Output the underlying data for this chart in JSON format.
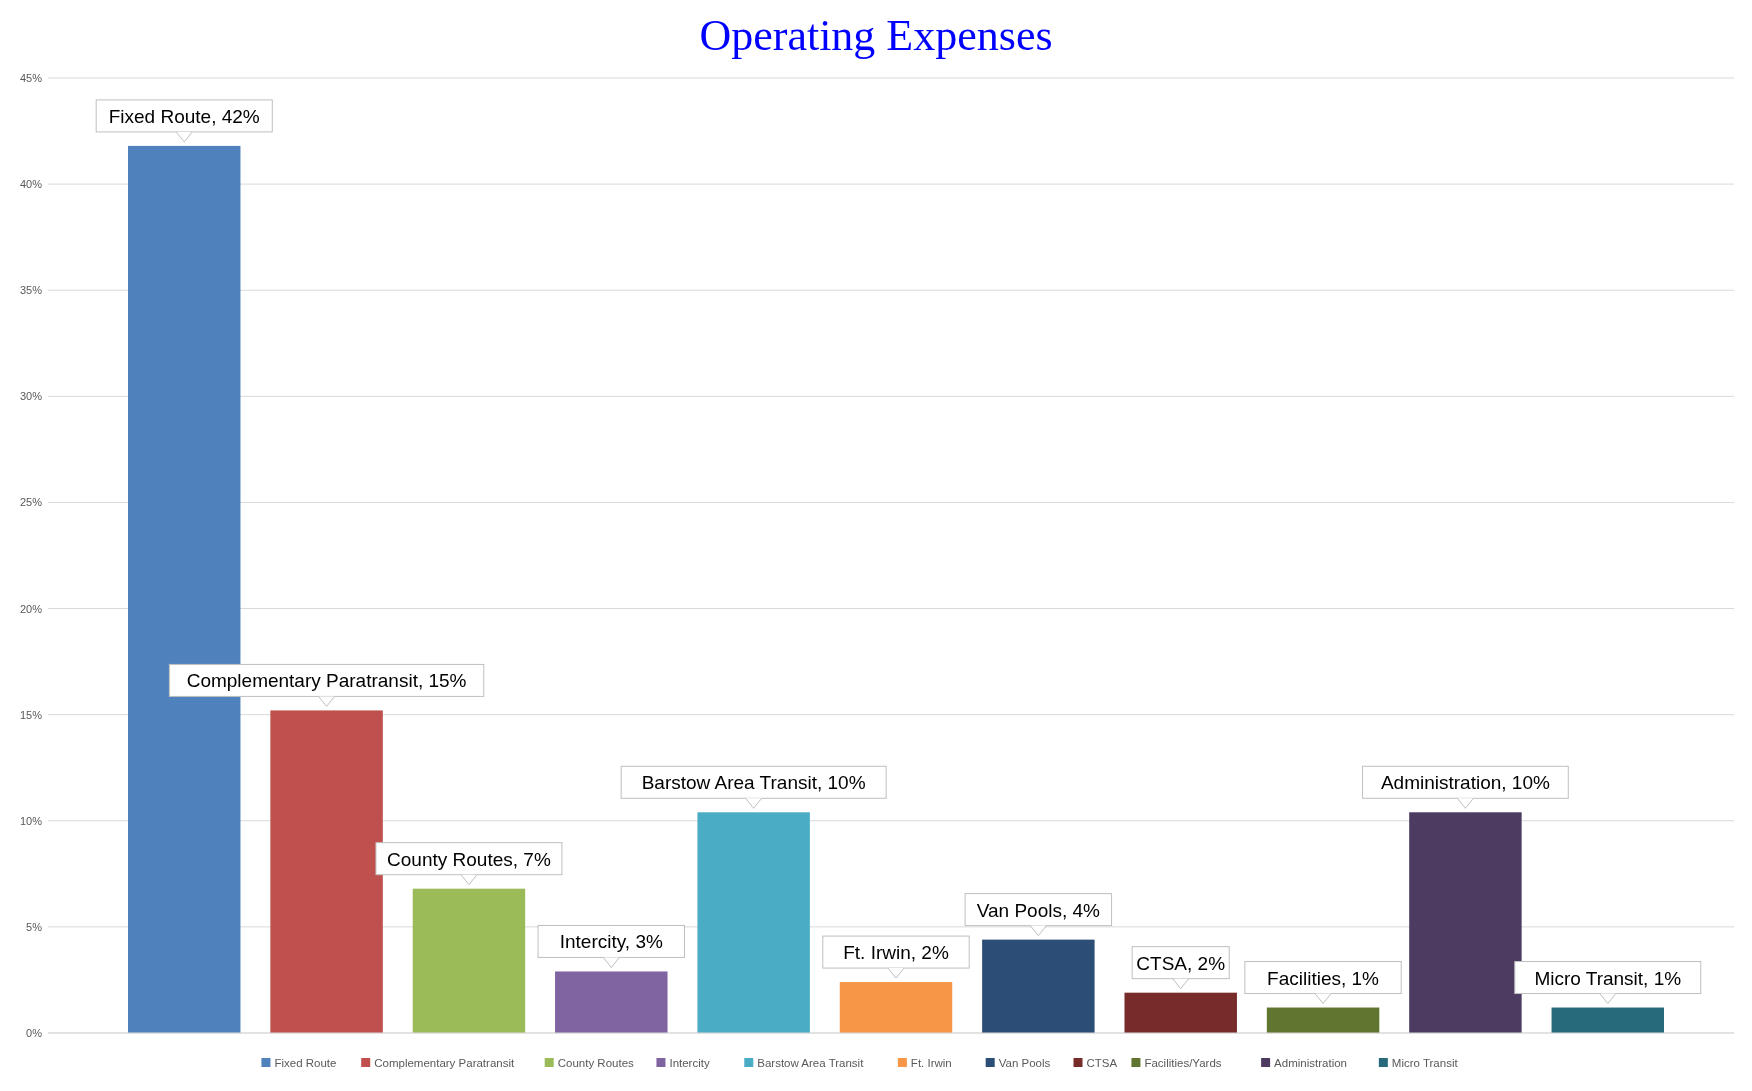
{
  "chart_data": {
    "type": "bar",
    "title": "Operating Expenses",
    "stacked": true,
    "categories": [
      null,
      null,
      null,
      null,
      null,
      null,
      null,
      null,
      null,
      null,
      null
    ],
    "series": [
      {
        "name": "Fixed Route",
        "color": "#4f81bd",
        "values": [
          41.8,
          null,
          null,
          null,
          null,
          null,
          null,
          null,
          null,
          null,
          null
        ],
        "value_labels": [
          "Fixed Route, 42%",
          null,
          null,
          null,
          null,
          null,
          null,
          null,
          null,
          null,
          null
        ]
      },
      {
        "name": "Complementary Paratransit",
        "color": "#c0504d",
        "values": [
          null,
          15.2,
          null,
          null,
          null,
          null,
          null,
          null,
          null,
          null,
          null
        ],
        "value_labels": [
          null,
          "Complementary Paratransit, 15%",
          null,
          null,
          null,
          null,
          null,
          null,
          null,
          null,
          null
        ]
      },
      {
        "name": "County Routes",
        "color": "#9bbb59",
        "values": [
          null,
          null,
          6.8,
          null,
          null,
          null,
          null,
          null,
          null,
          null,
          null
        ],
        "value_labels": [
          null,
          null,
          "County Routes, 7%",
          null,
          null,
          null,
          null,
          null,
          null,
          null,
          null
        ]
      },
      {
        "name": "Intercity",
        "color": "#8064a2",
        "values": [
          null,
          null,
          null,
          2.9,
          null,
          null,
          null,
          null,
          null,
          null,
          null
        ],
        "value_labels": [
          null,
          null,
          null,
          "Intercity, 3%",
          null,
          null,
          null,
          null,
          null,
          null,
          null
        ]
      },
      {
        "name": "Barstow Area Transit",
        "color": "#4bacc6",
        "values": [
          null,
          null,
          null,
          null,
          10.4,
          null,
          null,
          null,
          null,
          null,
          null
        ],
        "value_labels": [
          null,
          null,
          null,
          null,
          "Barstow Area Transit, 10%",
          null,
          null,
          null,
          null,
          null,
          null
        ]
      },
      {
        "name": "Ft. Irwin",
        "color": "#f79646",
        "values": [
          null,
          null,
          null,
          null,
          null,
          2.4,
          null,
          null,
          null,
          null,
          null
        ],
        "value_labels": [
          null,
          null,
          null,
          null,
          null,
          "Ft. Irwin, 2%",
          null,
          null,
          null,
          null,
          null
        ]
      },
      {
        "name": "Van Pools",
        "color": "#2c4d75",
        "values": [
          null,
          null,
          null,
          null,
          null,
          null,
          4.4,
          null,
          null,
          null,
          null
        ],
        "value_labels": [
          null,
          null,
          null,
          null,
          null,
          null,
          "Van Pools, 4%",
          null,
          null,
          null,
          null
        ]
      },
      {
        "name": "CTSA",
        "color": "#772c2a",
        "values": [
          null,
          null,
          null,
          null,
          null,
          null,
          null,
          1.9,
          null,
          null,
          null
        ],
        "value_labels": [
          null,
          null,
          null,
          null,
          null,
          null,
          null,
          "CTSA, 2%",
          null,
          null,
          null
        ]
      },
      {
        "name": "Facilities/Yards",
        "color": "#5f7530",
        "values": [
          null,
          null,
          null,
          null,
          null,
          null,
          null,
          null,
          1.2,
          null,
          null
        ],
        "value_labels": [
          null,
          null,
          null,
          null,
          null,
          null,
          null,
          null,
          "Facilities, 1%",
          null,
          null
        ]
      },
      {
        "name": "Administration",
        "color": "#4d3b62",
        "values": [
          null,
          null,
          null,
          null,
          null,
          null,
          null,
          null,
          null,
          10.4,
          null
        ],
        "value_labels": [
          null,
          null,
          null,
          null,
          null,
          null,
          null,
          null,
          null,
          "Administration, 10%",
          null
        ]
      },
      {
        "name": "Micro Transit",
        "color": "#276a7c",
        "values": [
          null,
          null,
          null,
          null,
          null,
          null,
          null,
          null,
          null,
          null,
          1.2
        ],
        "value_labels": [
          null,
          null,
          null,
          null,
          null,
          null,
          null,
          null,
          null,
          null,
          "Micro Transit, 1%"
        ]
      }
    ],
    "ylim": [
      0,
      45
    ],
    "yticks": [
      {
        "value": 0,
        "label": "0%"
      },
      {
        "value": 5,
        "label": "5%"
      },
      {
        "value": 10,
        "label": "10%"
      },
      {
        "value": 15,
        "label": "15%"
      },
      {
        "value": 20,
        "label": "20%"
      },
      {
        "value": 25,
        "label": "25%"
      },
      {
        "value": 30,
        "label": "30%"
      },
      {
        "value": 35,
        "label": "35%"
      },
      {
        "value": 40,
        "label": "40%"
      },
      {
        "value": 45,
        "label": "45%"
      }
    ],
    "grid": "y",
    "legend": "bottom",
    "tick_labels": "y"
  }
}
